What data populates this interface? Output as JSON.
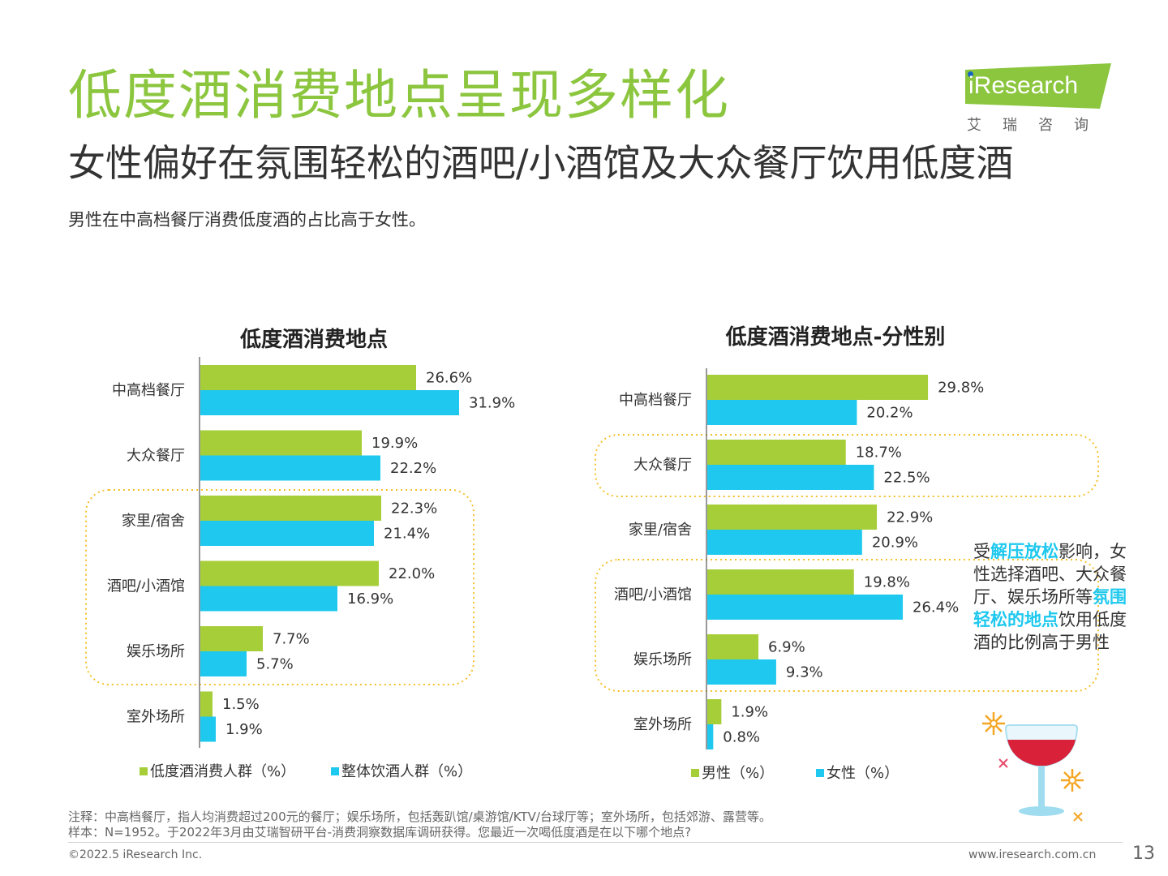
{
  "header": {
    "title": "低度酒消费地点呈现多样化",
    "subtitle": "女性偏好在氛围轻松的酒吧/小酒馆及大众餐厅饮用低度酒",
    "summary": "男性在中高档餐厅消费低度酒的占比高于女性。"
  },
  "logo": {
    "text": "iResearch",
    "cn": "艾瑞咨询",
    "color": "#8cc63f"
  },
  "colors": {
    "green": "#a6ce39",
    "blue": "#1ec8ee",
    "dash": "#f5c02a",
    "title_green": "#8cc63f"
  },
  "chart_data": [
    {
      "type": "bar",
      "orientation": "horizontal",
      "title": "低度酒消费地点",
      "categories": [
        "中高档餐厅",
        "大众餐厅",
        "家里/宿舍",
        "酒吧/小酒馆",
        "娱乐场所",
        "室外场所"
      ],
      "series": [
        {
          "name": "低度酒消费人群（%）",
          "values": [
            26.6,
            19.9,
            22.3,
            22.0,
            7.7,
            1.5
          ],
          "labels": [
            "26.6%",
            "19.9%",
            "22.3%",
            "22.0%",
            "7.7%",
            "1.5%"
          ]
        },
        {
          "name": "整体饮酒人群（%）",
          "values": [
            31.9,
            22.2,
            21.4,
            16.9,
            5.7,
            1.9
          ],
          "labels": [
            "31.9%",
            "22.2%",
            "21.4%",
            "16.9%",
            "5.7%",
            "1.9%"
          ]
        }
      ],
      "highlight_categories": [
        "家里/宿舍",
        "酒吧/小酒馆",
        "娱乐场所"
      ],
      "legend_position": "bottom"
    },
    {
      "type": "bar",
      "orientation": "horizontal",
      "title": "低度酒消费地点-分性别",
      "categories": [
        "中高档餐厅",
        "大众餐厅",
        "家里/宿舍",
        "酒吧/小酒馆",
        "娱乐场所",
        "室外场所"
      ],
      "series": [
        {
          "name": "男性（%）",
          "values": [
            29.8,
            18.7,
            22.9,
            19.8,
            6.9,
            1.9
          ],
          "labels": [
            "29.8%",
            "18.7%",
            "22.9%",
            "19.8%",
            "6.9%",
            "1.9%"
          ]
        },
        {
          "name": "女性（%）",
          "values": [
            20.2,
            22.5,
            20.9,
            26.4,
            9.3,
            0.8
          ],
          "labels": [
            "20.2%",
            "22.5%",
            "20.9%",
            "26.4%",
            "9.3%",
            "0.8%"
          ]
        }
      ],
      "highlight_categories": [
        "大众餐厅",
        "酒吧/小酒馆",
        "娱乐场所"
      ],
      "legend_position": "bottom"
    }
  ],
  "callout": {
    "p1": "受",
    "hl1": "解压放松",
    "p2": "影响，女性选择酒吧、大众餐厅、娱乐场所等",
    "hl2": "氛围轻松的地点",
    "p3": "饮用低度酒的比例高于男性"
  },
  "footer": {
    "note1": "注释：中高档餐厅，指人均消费超过200元的餐厅；娱乐场所，包括轰趴馆/桌游馆/KTV/台球厅等；室外场所，包括郊游、露营等。",
    "note2": "样本：N=1952。于2022年3月由艾瑞智研平台-消费洞察数据库调研获得。您最近一次喝低度酒是在以下哪个地点?",
    "copyright": "©2022.5 iResearch Inc.",
    "website": "www.iresearch.com.cn",
    "page": "13"
  }
}
